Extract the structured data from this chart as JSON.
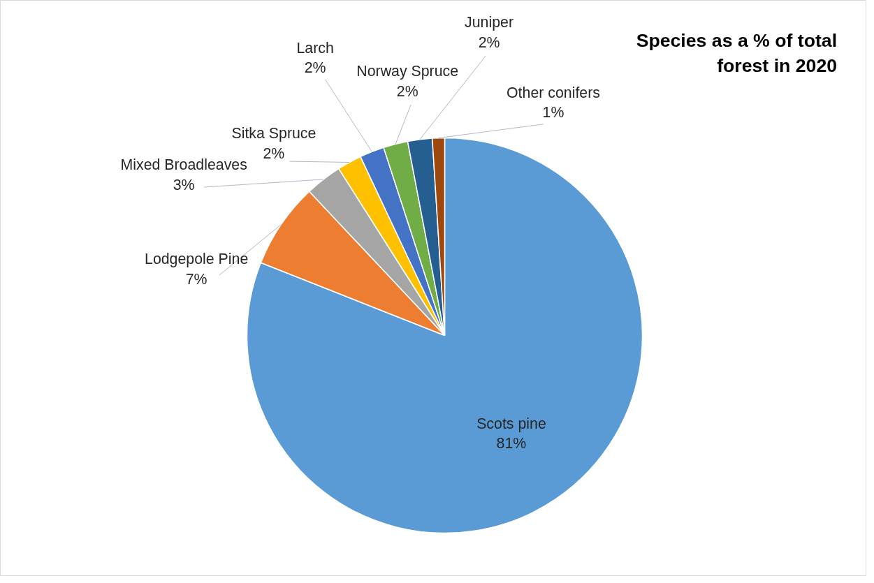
{
  "chart_data": {
    "type": "pie",
    "title": "Species as a % of total\nforest in 2020",
    "categories": [
      "Scots pine",
      "Lodgepole Pine",
      "Mixed Broadleaves",
      "Sitka Spruce",
      "Larch",
      "Norway Spruce",
      "Juniper",
      "Other conifers"
    ],
    "values": [
      81,
      7,
      3,
      2,
      2,
      2,
      2,
      1
    ],
    "colors": [
      "#5b9bd5",
      "#ed7d31",
      "#a5a5a5",
      "#ffc000",
      "#4472c4",
      "#70ad47",
      "#255e91",
      "#9e480e"
    ],
    "value_labels": [
      "81%",
      "7%",
      "3%",
      "2%",
      "2%",
      "2%",
      "2%",
      "1%"
    ],
    "legend": false
  }
}
